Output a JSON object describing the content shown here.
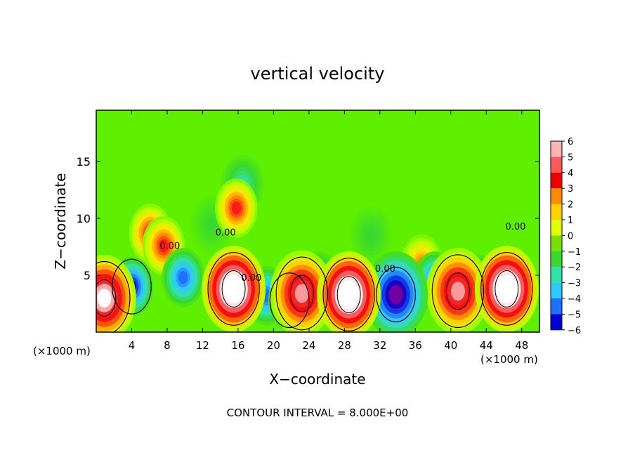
{
  "chart_data": {
    "type": "heatmap",
    "title": "vertical velocity",
    "xlabel": "X−coordinate",
    "ylabel": "Z−coordinate",
    "xunit_left": "(×1000 m)",
    "xunit_right": "(×1000 m)",
    "footer": "CONTOUR INTERVAL = 8.000E+00",
    "xlim": [
      0,
      50
    ],
    "ylim": [
      0,
      19.5
    ],
    "xticks": [
      4,
      8,
      12,
      16,
      20,
      24,
      28,
      32,
      36,
      40,
      44,
      48
    ],
    "xtick_labels": [
      "4",
      "8",
      "12",
      "16",
      "20",
      "24",
      "28",
      "32",
      "36",
      "40",
      "44",
      "48"
    ],
    "yticks": [
      5,
      10,
      15
    ],
    "ytick_labels": [
      "5",
      "10",
      "15"
    ],
    "contour_label": "0.00",
    "contour_label_positions": [
      [
        8.3,
        7.3
      ],
      [
        14.6,
        8.5
      ],
      [
        17.5,
        4.5
      ],
      [
        32.6,
        5.3
      ],
      [
        47.3,
        9.0
      ]
    ],
    "colorbar": {
      "levels": [
        6,
        5,
        4,
        3,
        2,
        1,
        0,
        -1,
        -2,
        -3,
        -4,
        -5,
        -6
      ],
      "labels": [
        "6",
        "5",
        "4",
        "3",
        "2",
        "1",
        "0",
        "−1",
        "−2",
        "−3",
        "−4",
        "−5",
        "−6"
      ],
      "colors": [
        "#ffb4b4",
        "#ff5a5a",
        "#ee0000",
        "#ff8c00",
        "#ffd200",
        "#e0ff00",
        "#78e000",
        "#38d830",
        "#30e2a8",
        "#30c8ff",
        "#2070ff",
        "#0000d0",
        "#7000a0"
      ]
    },
    "colors": {
      "background": "#5ef000",
      "contour": "#000000",
      "frame": "#000000"
    },
    "features": [
      {
        "kind": "updraft",
        "x": 15.5,
        "z": 3.8,
        "value": 9
      },
      {
        "kind": "updraft",
        "x": 28.5,
        "z": 3.3,
        "value": 9
      },
      {
        "kind": "updraft",
        "x": 46.3,
        "z": 3.8,
        "value": 9
      },
      {
        "kind": "updraft",
        "x": 0.9,
        "z": 3.0,
        "value": 7
      },
      {
        "kind": "updraft",
        "x": 23.2,
        "z": 3.4,
        "value": 6
      },
      {
        "kind": "updraft",
        "x": 40.8,
        "z": 3.6,
        "value": 6
      },
      {
        "kind": "updraft",
        "x": 6.1,
        "z": 8.7,
        "value": 4
      },
      {
        "kind": "updraft",
        "x": 7.6,
        "z": 7.6,
        "value": 4
      },
      {
        "kind": "updraft",
        "x": 15.8,
        "z": 10.9,
        "value": 4
      },
      {
        "kind": "updraft",
        "x": 36.7,
        "z": 6.0,
        "value": 3
      },
      {
        "kind": "downdraft",
        "x": 4.0,
        "z": 4.0,
        "value": -5
      },
      {
        "kind": "downdraft",
        "x": 9.8,
        "z": 4.8,
        "value": -4
      },
      {
        "kind": "downdraft",
        "x": 19.2,
        "z": 3.2,
        "value": -4
      },
      {
        "kind": "downdraft",
        "x": 21.8,
        "z": 2.8,
        "value": -5
      },
      {
        "kind": "downdraft",
        "x": 33.8,
        "z": 3.3,
        "value": -6
      },
      {
        "kind": "downdraft",
        "x": 38.2,
        "z": 4.5,
        "value": -4
      },
      {
        "kind": "downdraft",
        "x": 43.2,
        "z": 4.2,
        "value": -4
      },
      {
        "kind": "downdraft",
        "x": 25.0,
        "z": 4.5,
        "value": -3
      },
      {
        "kind": "downdraft",
        "x": 16.5,
        "z": 13.0,
        "value": -2
      },
      {
        "kind": "downdraft",
        "x": 13.0,
        "z": 9.5,
        "value": -1
      },
      {
        "kind": "downdraft",
        "x": 31.0,
        "z": 8.5,
        "value": -1
      }
    ]
  }
}
